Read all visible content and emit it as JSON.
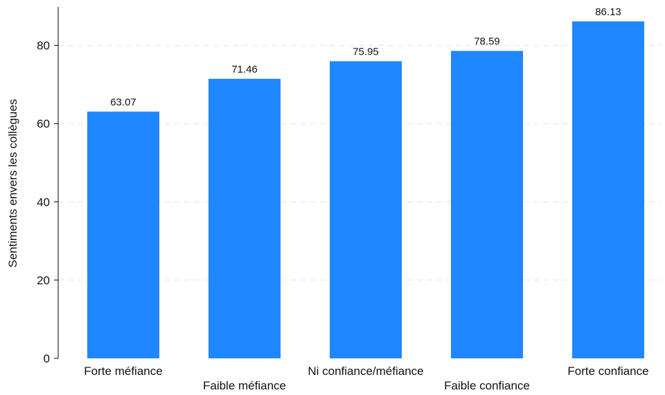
{
  "chart_data": {
    "type": "bar",
    "categories": [
      "Forte méfiance",
      "Faible méfiance",
      "Ni confiance/méfiance",
      "Faible confiance",
      "Forte confiance"
    ],
    "values": [
      63.07,
      71.46,
      75.95,
      78.59,
      86.13
    ],
    "value_labels": [
      "63.07",
      "71.46",
      "75.95",
      "78.59",
      "86.13"
    ],
    "title": "",
    "xlabel": "",
    "ylabel": "Sentiments envers les collègues",
    "ylim": [
      0,
      90
    ],
    "yticks": [
      0,
      20,
      40,
      60,
      80
    ],
    "ytick_labels": [
      "0",
      "20",
      "40",
      "60",
      "80"
    ],
    "grid": true,
    "bar_color": "#1f87ff",
    "grid_color": "#e2e2e2"
  }
}
